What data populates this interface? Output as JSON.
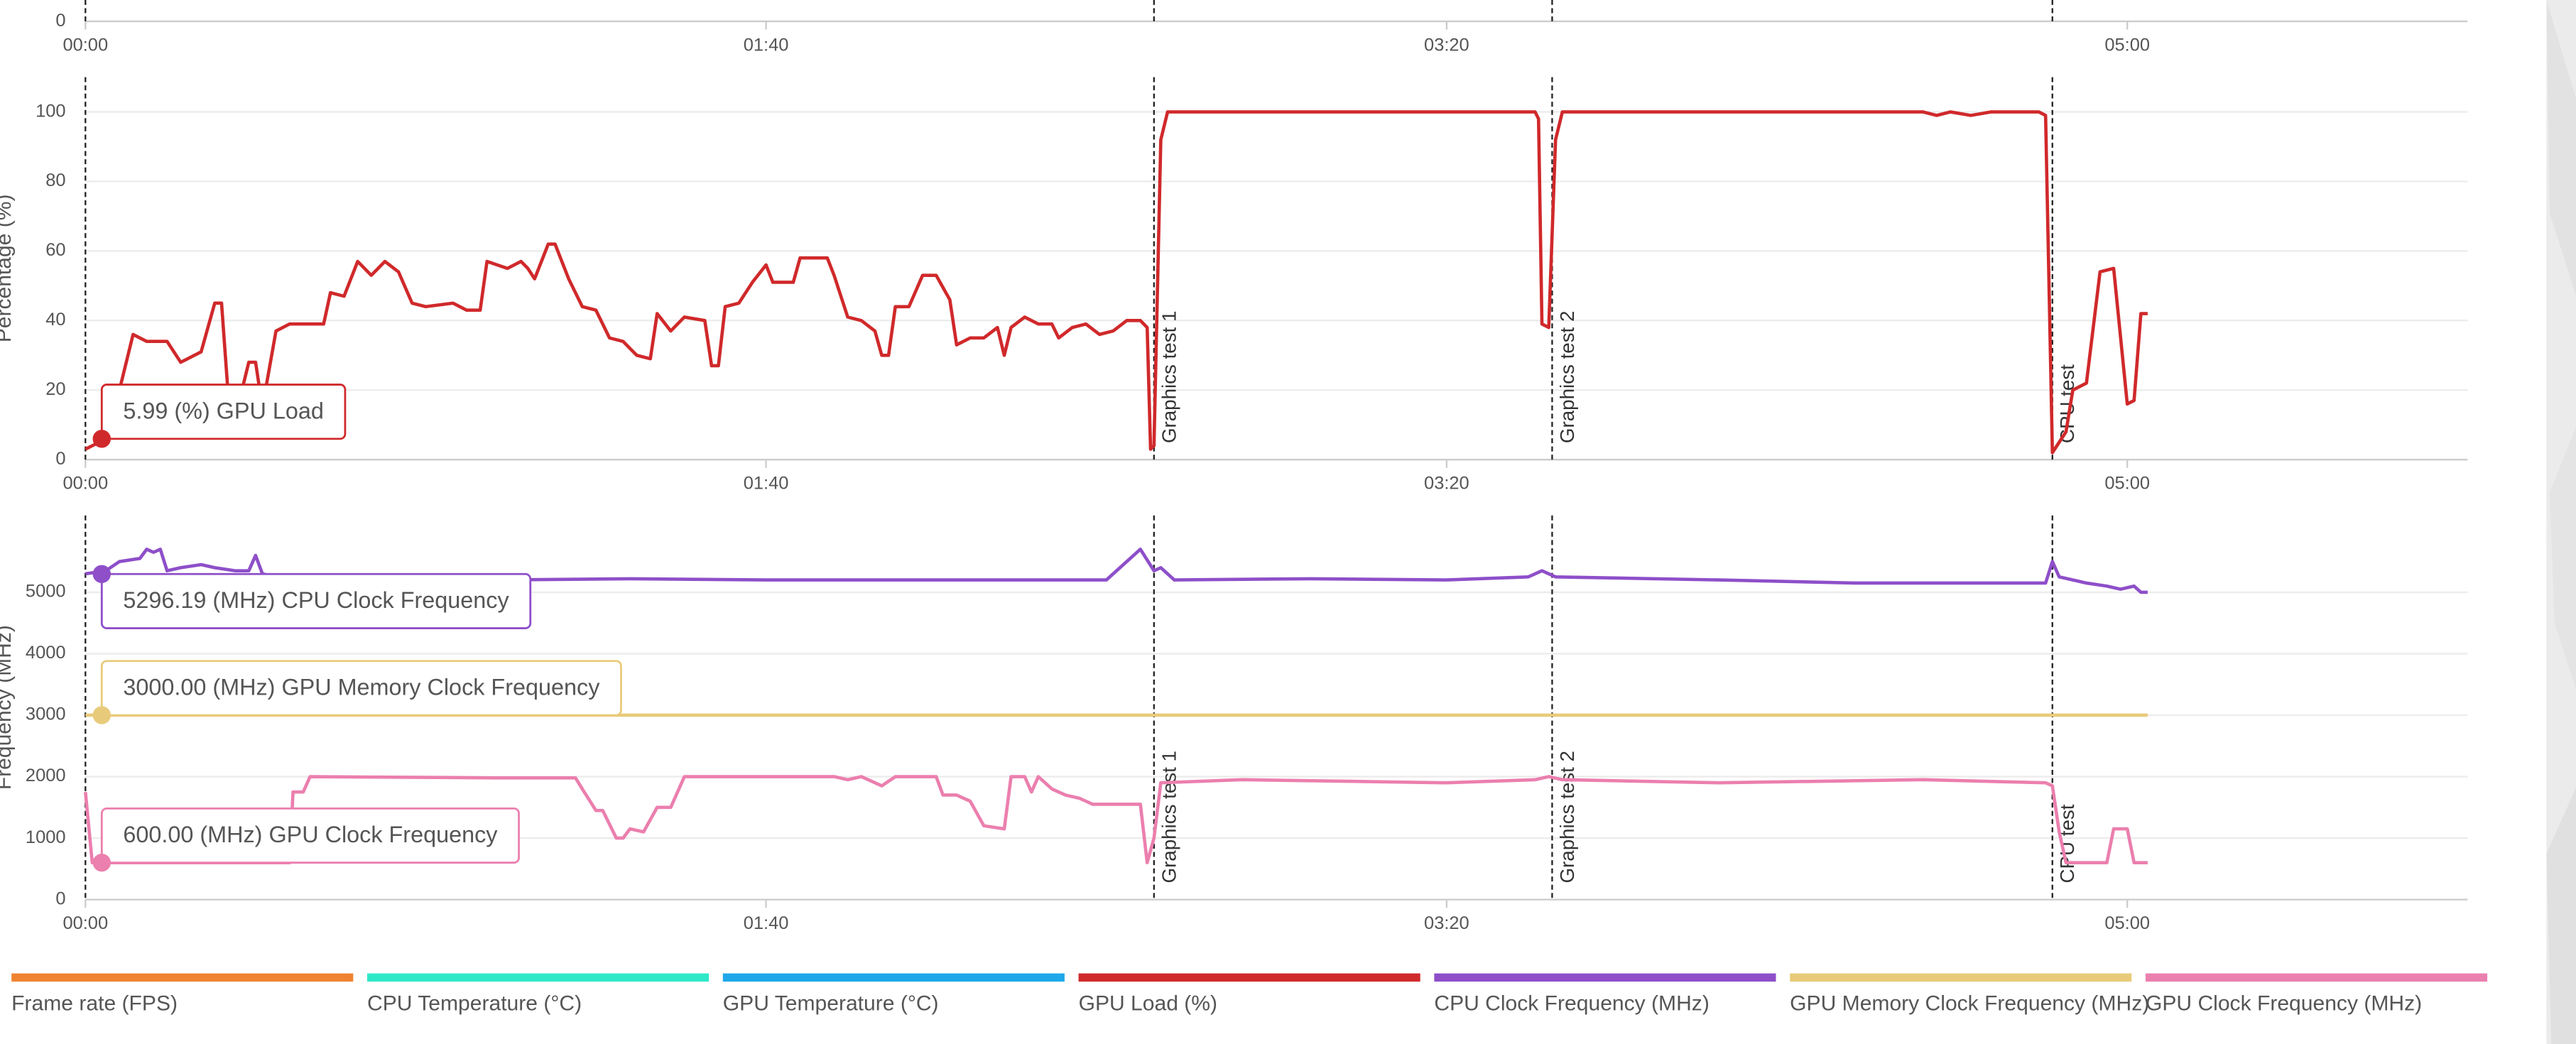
{
  "annotations": [
    {
      "x": 0
    },
    {
      "x": 157,
      "text": "Graphics test 1"
    },
    {
      "x": 215.5,
      "text": "Graphics test 2"
    },
    {
      "x": 289,
      "text": "CPU test"
    }
  ],
  "chart_data": [
    {
      "type": "line",
      "xlim": [
        0,
        350
      ],
      "ylim": [
        0,
        110
      ],
      "yticks": [
        0
      ],
      "xticks": [
        {
          "value": 0,
          "label": "00:00"
        },
        {
          "value": 100,
          "label": "01:40"
        },
        {
          "value": 200,
          "label": "03:20"
        },
        {
          "value": 300,
          "label": "05:00"
        }
      ],
      "series": []
    },
    {
      "type": "line",
      "y_label": "Percentage (%)",
      "xlim": [
        0,
        350
      ],
      "ylim": [
        0,
        110
      ],
      "yticks": [
        0,
        20,
        40,
        60,
        80,
        100
      ],
      "grid": true,
      "xticks": [
        {
          "value": 0,
          "label": "00:00"
        },
        {
          "value": 100,
          "label": "01:40"
        },
        {
          "value": 200,
          "label": "03:20"
        },
        {
          "value": 300,
          "label": "05:00"
        }
      ],
      "series": [
        {
          "color": "#d0292b",
          "x": [
            0,
            2,
            5,
            7,
            9,
            12,
            14,
            17,
            19,
            20,
            21,
            23,
            24,
            25,
            26,
            28,
            30,
            35,
            36,
            38,
            40,
            42,
            44,
            46,
            48,
            50,
            54,
            56,
            58,
            59,
            62,
            64,
            65,
            66,
            68,
            69,
            71,
            73,
            75,
            77,
            79,
            81,
            83,
            84,
            86,
            88,
            91,
            92,
            93,
            94,
            96,
            98,
            100,
            101,
            104,
            105,
            109,
            110,
            112,
            114,
            116,
            117,
            118,
            119,
            121,
            123,
            125,
            127,
            128,
            130,
            132,
            134,
            135,
            136,
            138,
            140,
            142,
            143,
            145,
            147,
            149,
            151,
            153,
            155,
            156,
            156.5,
            157,
            158,
            159,
            170,
            210,
            213,
            213.5,
            214,
            215,
            216,
            217,
            240,
            270,
            272,
            274,
            277,
            280,
            287,
            288,
            289,
            290,
            291,
            292,
            294,
            296,
            298,
            300,
            301,
            302,
            303
          ],
          "values": [
            3,
            5,
            20,
            36,
            34,
            34,
            28,
            31,
            45,
            45,
            18,
            20,
            28,
            28,
            15,
            37,
            39,
            39,
            48,
            47,
            57,
            53,
            57,
            54,
            45,
            44,
            45,
            43,
            43,
            57,
            55,
            57,
            55,
            52,
            62,
            62,
            52,
            44,
            43,
            35,
            34,
            30,
            29,
            42,
            37,
            41,
            40,
            27,
            27,
            44,
            45,
            51,
            56,
            51,
            51,
            58,
            58,
            53,
            41,
            40,
            37,
            30,
            30,
            44,
            44,
            53,
            53,
            46,
            33,
            35,
            35,
            38,
            30,
            38,
            41,
            39,
            39,
            35,
            38,
            39,
            36,
            37,
            40,
            40,
            38,
            3,
            4,
            92,
            100,
            100,
            100,
            100,
            98,
            39,
            38,
            92,
            100,
            100,
            100,
            99,
            100,
            99,
            100,
            100,
            99,
            2,
            5,
            8,
            20,
            22,
            54,
            55,
            16,
            17,
            42,
            42
          ],
          "tooltip": {
            "x": 2.4,
            "value": 5.99,
            "label": "5.99 (%) GPU Load"
          }
        }
      ]
    },
    {
      "type": "line",
      "y_label": "Frequency (MHz)",
      "xlim": [
        0,
        350
      ],
      "ylim": [
        0,
        6250
      ],
      "yticks": [
        0,
        1000,
        2000,
        3000,
        4000,
        5000
      ],
      "grid": true,
      "xticks": [
        {
          "value": 0,
          "label": "00:00"
        },
        {
          "value": 100,
          "label": "01:40"
        },
        {
          "value": 200,
          "label": "03:20"
        },
        {
          "value": 300,
          "label": "05:00"
        }
      ],
      "series": [
        {
          "color": "#8e4fc9",
          "x": [
            0,
            3,
            5,
            8,
            9,
            10,
            11,
            12,
            14,
            17,
            19,
            22,
            24,
            25,
            26,
            28,
            40,
            60,
            80,
            100,
            120,
            140,
            150,
            155,
            157,
            158,
            160,
            180,
            200,
            212,
            214,
            216,
            240,
            260,
            280,
            288,
            289,
            290,
            294,
            297,
            299,
            301,
            302,
            303
          ],
          "values": [
            5300,
            5350,
            5500,
            5550,
            5700,
            5650,
            5700,
            5350,
            5400,
            5450,
            5400,
            5350,
            5350,
            5600,
            5300,
            5250,
            5200,
            5200,
            5220,
            5200,
            5200,
            5200,
            5200,
            5700,
            5350,
            5400,
            5200,
            5220,
            5200,
            5250,
            5350,
            5250,
            5200,
            5150,
            5150,
            5150,
            5500,
            5250,
            5150,
            5100,
            5050,
            5100,
            5000,
            5000
          ],
          "tooltip": {
            "x": 2.4,
            "value": 5296.19,
            "label": "5296.19 (MHz) CPU Clock Frequency"
          }
        },
        {
          "color": "#e8cb7a",
          "x": [
            0,
            303
          ],
          "values": [
            3000,
            3000
          ],
          "tooltip": {
            "x": 2.4,
            "value": 3000,
            "label": "3000.00 (MHz) GPU Memory Clock Frequency"
          }
        },
        {
          "color": "#eb7fae",
          "x": [
            0,
            1,
            2,
            30,
            30.5,
            32,
            33,
            60,
            72,
            73,
            75,
            76,
            78,
            79,
            80,
            82,
            84,
            86,
            88,
            110,
            112,
            114,
            117,
            119,
            125,
            126,
            128,
            130,
            132,
            135,
            136,
            138,
            139,
            140,
            142,
            144,
            146,
            148,
            150,
            155,
            156,
            157,
            158,
            170,
            200,
            213,
            215,
            217,
            240,
            270,
            288,
            289,
            290,
            291,
            297,
            298,
            300,
            301,
            303
          ],
          "values": [
            1750,
            600,
            600,
            600,
            1750,
            1750,
            2000,
            1980,
            1980,
            1800,
            1450,
            1450,
            1000,
            1000,
            1150,
            1100,
            1500,
            1500,
            2000,
            2000,
            1950,
            2000,
            1850,
            2000,
            2000,
            1700,
            1700,
            1600,
            1200,
            1150,
            2000,
            2000,
            1750,
            2000,
            1800,
            1700,
            1650,
            1550,
            1550,
            1550,
            600,
            1000,
            1900,
            1950,
            1900,
            1950,
            2000,
            1950,
            1900,
            1950,
            1900,
            1850,
            1100,
            600,
            600,
            1150,
            1150,
            600,
            600
          ],
          "tooltip": {
            "x": 2.4,
            "value": 600,
            "label": "600.00 (MHz) GPU Clock Frequency"
          }
        }
      ]
    }
  ],
  "legend": [
    {
      "name": "Frame rate (FPS)",
      "color": "#f08330"
    },
    {
      "name": "CPU Temperature (°C)",
      "color": "#2ee8c8"
    },
    {
      "name": "GPU Temperature (°C)",
      "color": "#1ea8ea"
    },
    {
      "name": "GPU Load (%)",
      "color": "#d0292b"
    },
    {
      "name": "CPU Clock Frequency (MHz)",
      "color": "#8e4fc9"
    },
    {
      "name": "GPU Memory Clock Frequency (MHz)",
      "color": "#e8cb7a"
    },
    {
      "name": "GPU Clock Frequency (MHz)",
      "color": "#eb7fae"
    }
  ]
}
